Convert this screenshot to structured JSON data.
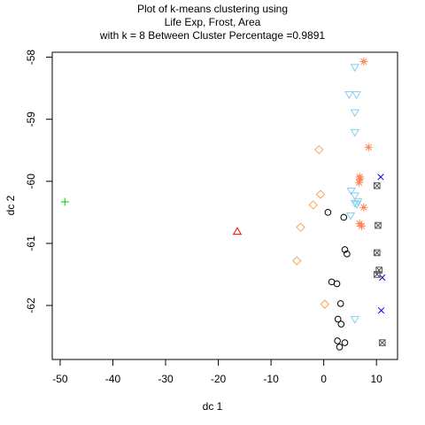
{
  "chart_data": {
    "type": "scatter",
    "title_lines": [
      "Plot of k-means clustering using",
      "Life Exp, Frost, Area",
      "with  k = 8 Between Cluster Percentage =0.9891"
    ],
    "xlabel": "dc 1",
    "ylabel": "dc 2",
    "xlim": [
      -51.5,
      14
    ],
    "ylim": [
      -62.87,
      -57.92
    ],
    "xticks": [
      -50,
      -40,
      -30,
      -20,
      -10,
      0,
      10
    ],
    "yticks": [
      -58,
      -59,
      -60,
      -61,
      -62
    ],
    "grid": false,
    "legend": "none",
    "series": [
      {
        "color": "#000000",
        "marker": "circle",
        "points": [
          [
            0.8,
            -60.5
          ],
          [
            3.8,
            -60.58
          ],
          [
            4,
            -61.1
          ],
          [
            4.4,
            -61.17
          ],
          [
            1.5,
            -61.62
          ],
          [
            2.5,
            -61.65
          ],
          [
            3.2,
            -61.97
          ],
          [
            2.7,
            -62.22
          ],
          [
            3.3,
            -62.3
          ],
          [
            2.6,
            -62.57
          ],
          [
            4,
            -62.6
          ],
          [
            3,
            -62.67
          ]
        ]
      },
      {
        "color": "#ff0000",
        "marker": "triangle",
        "points": [
          [
            -16.4,
            -60.81
          ]
        ]
      },
      {
        "color": "#00cc00",
        "marker": "plus",
        "points": [
          [
            -49.1,
            -60.33
          ]
        ]
      },
      {
        "color": "#0000dd",
        "marker": "x",
        "points": [
          [
            10.8,
            -59.93
          ],
          [
            11.1,
            -61.55
          ],
          [
            10.9,
            -62.08
          ]
        ]
      },
      {
        "color": "#87ceeb",
        "marker": "triangle-down",
        "points": [
          [
            5.9,
            -58.16
          ],
          [
            4.8,
            -58.6
          ],
          [
            6.2,
            -58.6
          ],
          [
            5.9,
            -58.89
          ],
          [
            5.9,
            -59.21
          ],
          [
            5.2,
            -60.15
          ],
          [
            5.9,
            -60.23
          ],
          [
            6.5,
            -60.32
          ],
          [
            5.9,
            -60.35
          ],
          [
            6.3,
            -60.37
          ],
          [
            5.1,
            -60.55
          ],
          [
            5.9,
            -62.22
          ]
        ]
      },
      {
        "color": "#ff7f50",
        "marker": "asterisk",
        "points": [
          [
            7.6,
            -58.07
          ],
          [
            8.5,
            -59.45
          ],
          [
            6.8,
            -59.93
          ],
          [
            6.9,
            -59.96
          ],
          [
            6.7,
            -60.02
          ],
          [
            7.6,
            -60.42
          ],
          [
            6.8,
            -60.68
          ],
          [
            7.2,
            -60.72
          ]
        ]
      },
      {
        "color": "#f4a460",
        "marker": "diamond",
        "points": [
          [
            -0.9,
            -59.49
          ],
          [
            -0.6,
            -60.21
          ],
          [
            -2,
            -60.38
          ],
          [
            -4.4,
            -60.74
          ],
          [
            -5.1,
            -61.28
          ],
          [
            0.2,
            -61.98
          ]
        ]
      },
      {
        "color": "#555555",
        "marker": "boxed-x",
        "points": [
          [
            10.1,
            -60.07
          ],
          [
            10.3,
            -60.71
          ],
          [
            10.1,
            -61.15
          ],
          [
            10.5,
            -61.43
          ],
          [
            10.1,
            -61.5
          ],
          [
            11.1,
            -62.6
          ]
        ]
      }
    ]
  }
}
